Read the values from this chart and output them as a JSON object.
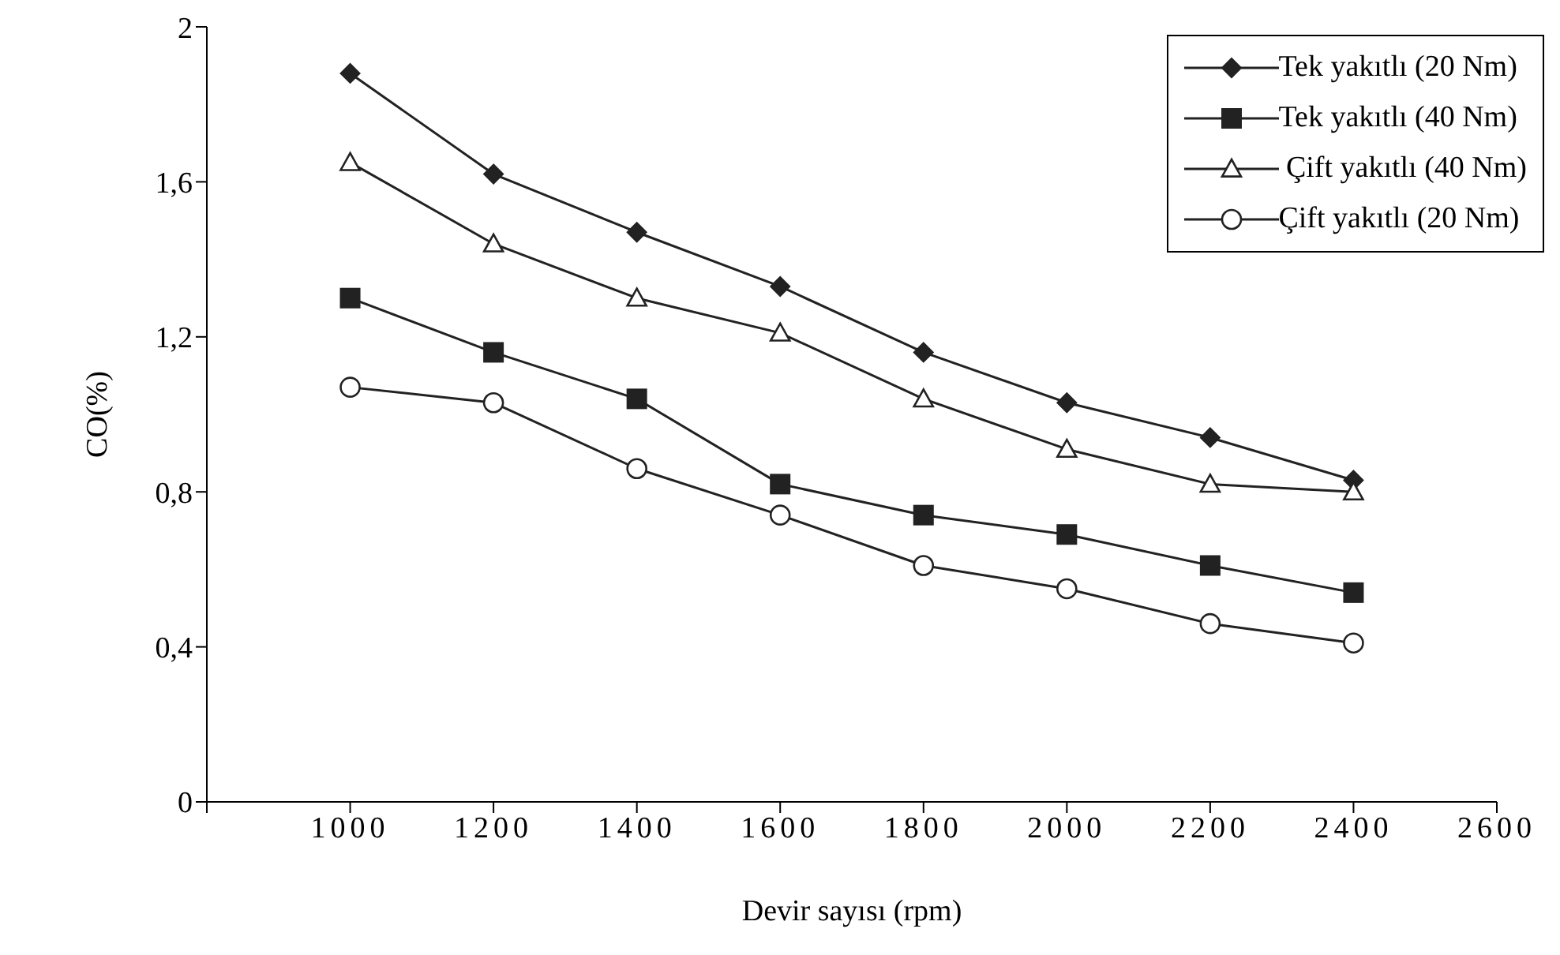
{
  "chart_data": {
    "type": "line",
    "xlabel": "Devir sayısı (rpm)",
    "ylabel": "CO(%)",
    "x": [
      1000,
      1200,
      1400,
      1600,
      1800,
      2000,
      2200,
      2400
    ],
    "xlim": [
      800,
      2600
    ],
    "xticks": [
      {
        "value": 800,
        "label": null
      },
      1000,
      1200,
      1400,
      1600,
      1800,
      2000,
      2200,
      2400,
      2600
    ],
    "ylim": [
      0,
      2
    ],
    "yticks": [
      0,
      {
        "value": 0.4,
        "label": "0,4"
      },
      {
        "value": 0.8,
        "label": "0,8"
      },
      {
        "value": 1.2,
        "label": "1,2"
      },
      {
        "value": 1.6,
        "label": "1,6"
      },
      2
    ],
    "grid": false,
    "legend": "top right",
    "series": [
      {
        "name": "Tek yakıtlı (20 Nm)",
        "color": "#222222",
        "marker": "diamond",
        "values": [
          1.88,
          1.62,
          1.47,
          1.33,
          1.16,
          1.03,
          0.94,
          0.83
        ]
      },
      {
        "name": "Tek yakıtlı (40 Nm)",
        "color": "#222222",
        "marker": "square",
        "values": [
          1.3,
          1.16,
          1.04,
          0.82,
          0.74,
          0.69,
          0.61,
          0.54
        ]
      },
      {
        "name": " Çift yakıtlı (40 Nm)",
        "color": "#222222",
        "marker": "triangle",
        "values": [
          1.65,
          1.44,
          1.3,
          1.21,
          1.04,
          0.91,
          0.82,
          0.8
        ]
      },
      {
        "name": "Çift yakıtlı (20 Nm)",
        "color": "#222222",
        "marker": "circle",
        "values": [
          1.07,
          1.03,
          0.86,
          0.74,
          0.61,
          0.55,
          0.46,
          0.41
        ]
      }
    ]
  }
}
